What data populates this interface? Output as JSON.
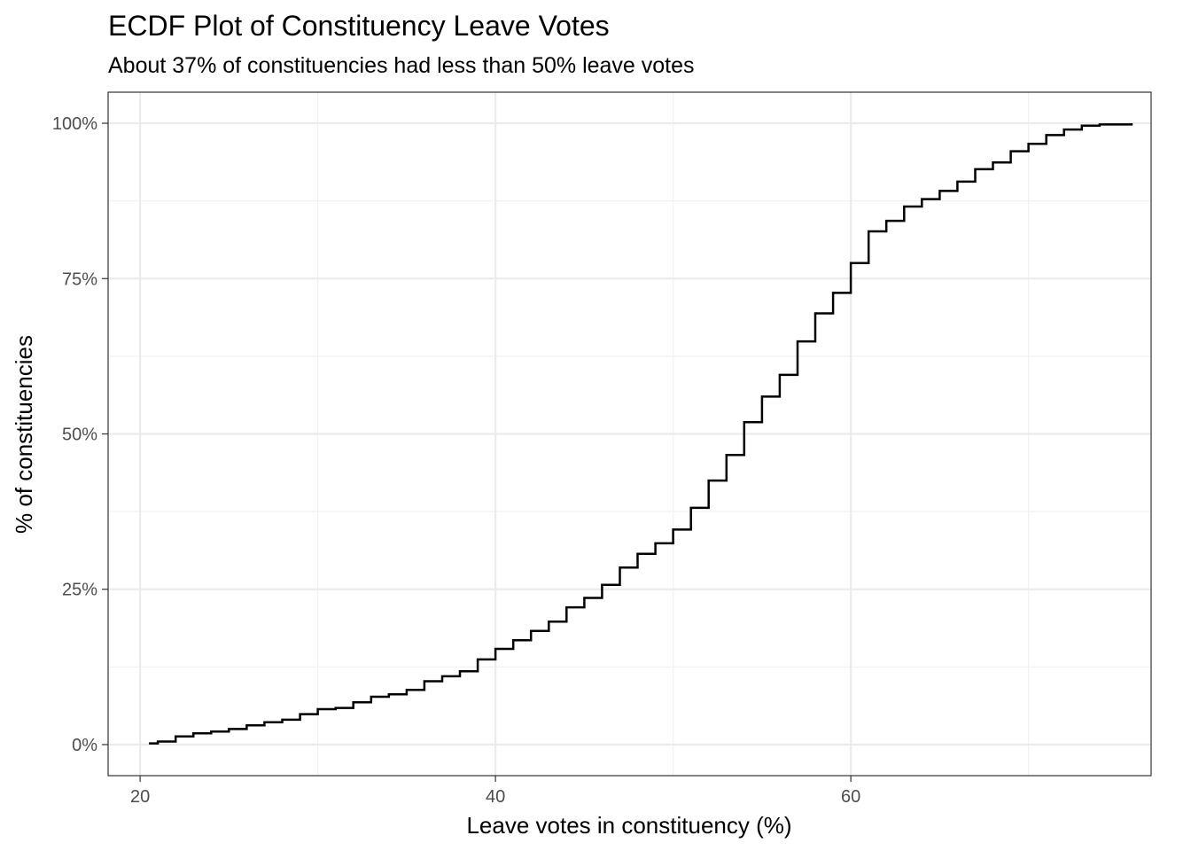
{
  "chart_data": {
    "type": "line",
    "step": true,
    "title": "ECDF Plot of Constituency Leave Votes",
    "subtitle": "About 37% of constituencies had less than 50% leave votes",
    "xlabel": "Leave votes in constituency (%)",
    "ylabel": "% of constituencies",
    "xlim": [
      18.2,
      76.9
    ],
    "ylim": [
      -0.05,
      1.05
    ],
    "x_ticks": [
      20,
      40,
      60
    ],
    "x_tick_labels": [
      "20",
      "40",
      "60"
    ],
    "x_minor_ticks": [
      30,
      50,
      70
    ],
    "y_ticks": [
      0,
      0.25,
      0.5,
      0.75,
      1.0
    ],
    "y_tick_labels": [
      "0%",
      "25%",
      "50%",
      "75%",
      "100%"
    ],
    "y_minor_ticks": [
      0.125,
      0.375,
      0.625,
      0.875
    ],
    "grid": true,
    "colors": {
      "line": "#000000",
      "panel_border": "#333333",
      "grid_major": "#ebebeb",
      "grid_minor": "#f2f2f2"
    },
    "x": [
      20.5,
      21.0,
      22.0,
      23.0,
      24.0,
      25.0,
      26.0,
      27.0,
      28.0,
      29.0,
      30.0,
      31.0,
      32.0,
      33.0,
      34.0,
      35.0,
      36.0,
      37.0,
      38.0,
      39.0,
      40.0,
      41.0,
      42.0,
      43.0,
      44.0,
      45.0,
      46.0,
      47.0,
      48.0,
      49.0,
      50.0,
      51.0,
      52.0,
      53.0,
      54.0,
      55.0,
      56.0,
      57.0,
      58.0,
      59.0,
      60.0,
      61.0,
      62.0,
      63.0,
      64.0,
      65.0,
      66.0,
      67.0,
      68.0,
      69.0,
      70.0,
      71.0,
      72.0,
      73.0,
      74.0,
      75.8
    ],
    "y": [
      0.002,
      0.005,
      0.013,
      0.018,
      0.021,
      0.025,
      0.031,
      0.036,
      0.04,
      0.049,
      0.057,
      0.059,
      0.068,
      0.077,
      0.081,
      0.088,
      0.102,
      0.11,
      0.118,
      0.137,
      0.154,
      0.168,
      0.183,
      0.198,
      0.221,
      0.236,
      0.257,
      0.285,
      0.307,
      0.324,
      0.346,
      0.381,
      0.425,
      0.466,
      0.519,
      0.56,
      0.595,
      0.649,
      0.694,
      0.727,
      0.775,
      0.826,
      0.843,
      0.866,
      0.878,
      0.891,
      0.906,
      0.926,
      0.937,
      0.955,
      0.967,
      0.981,
      0.99,
      0.996,
      0.998,
      1.0
    ]
  }
}
